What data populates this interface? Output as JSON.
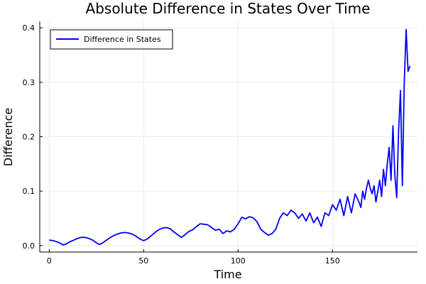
{
  "chart_data": {
    "type": "line",
    "title": "Absolute Difference in States Over Time",
    "xlabel": "Time",
    "ylabel": "Difference",
    "xlim": [
      -5,
      195
    ],
    "ylim": [
      -0.012,
      0.412
    ],
    "xticks": [
      0,
      50,
      100,
      150
    ],
    "yticks": [
      0.0,
      0.1,
      0.2,
      0.3,
      0.4
    ],
    "xtick_labels": [
      "0",
      "50",
      "100",
      "150"
    ],
    "ytick_labels": [
      "0.0",
      "0.1",
      "0.2",
      "0.3",
      "0.4"
    ],
    "grid": true,
    "legend": {
      "position": "top-left"
    },
    "series": [
      {
        "name": "Difference in States",
        "color": "#0000ff",
        "x": [
          0,
          2,
          4,
          6,
          7.5,
          9,
          11,
          13,
          15,
          17,
          19,
          21,
          23,
          25,
          26.5,
          28,
          30,
          32,
          34,
          36,
          38,
          40,
          42,
          44,
          46,
          48,
          50,
          52,
          54,
          56,
          58,
          60,
          62,
          64,
          66,
          68,
          70,
          72,
          74,
          76,
          78,
          80,
          82,
          84,
          86,
          88,
          90,
          92,
          94,
          96,
          98,
          100,
          102,
          104,
          106,
          108,
          110,
          112,
          114,
          116,
          118,
          120,
          122,
          124,
          126,
          128,
          130,
          132,
          134,
          136,
          138,
          140,
          142,
          144,
          146,
          148,
          150,
          152,
          154,
          156,
          158,
          160,
          162,
          164,
          165,
          166,
          167,
          168,
          169,
          170,
          171,
          172,
          173,
          174,
          175,
          176,
          177,
          178,
          179,
          180,
          181,
          182,
          183,
          184,
          185,
          186,
          187,
          188,
          189,
          190,
          191
        ],
        "y": [
          0.01,
          0.009,
          0.007,
          0.004,
          0.001,
          0.003,
          0.007,
          0.01,
          0.013,
          0.015,
          0.015,
          0.013,
          0.01,
          0.005,
          0.002,
          0.004,
          0.009,
          0.014,
          0.018,
          0.021,
          0.023,
          0.024,
          0.023,
          0.021,
          0.017,
          0.012,
          0.009,
          0.012,
          0.018,
          0.024,
          0.029,
          0.032,
          0.033,
          0.031,
          0.025,
          0.02,
          0.015,
          0.02,
          0.026,
          0.029,
          0.035,
          0.04,
          0.039,
          0.038,
          0.033,
          0.028,
          0.03,
          0.022,
          0.027,
          0.025,
          0.03,
          0.04,
          0.052,
          0.049,
          0.053,
          0.051,
          0.044,
          0.03,
          0.024,
          0.019,
          0.022,
          0.03,
          0.05,
          0.06,
          0.055,
          0.065,
          0.06,
          0.05,
          0.058,
          0.045,
          0.06,
          0.042,
          0.052,
          0.035,
          0.06,
          0.055,
          0.075,
          0.065,
          0.085,
          0.055,
          0.09,
          0.06,
          0.095,
          0.08,
          0.07,
          0.1,
          0.085,
          0.105,
          0.12,
          0.105,
          0.095,
          0.11,
          0.08,
          0.1,
          0.12,
          0.09,
          0.14,
          0.11,
          0.15,
          0.18,
          0.12,
          0.22,
          0.13,
          0.088,
          0.21,
          0.285,
          0.11,
          0.3,
          0.397,
          0.32,
          0.33
        ]
      }
    ]
  }
}
